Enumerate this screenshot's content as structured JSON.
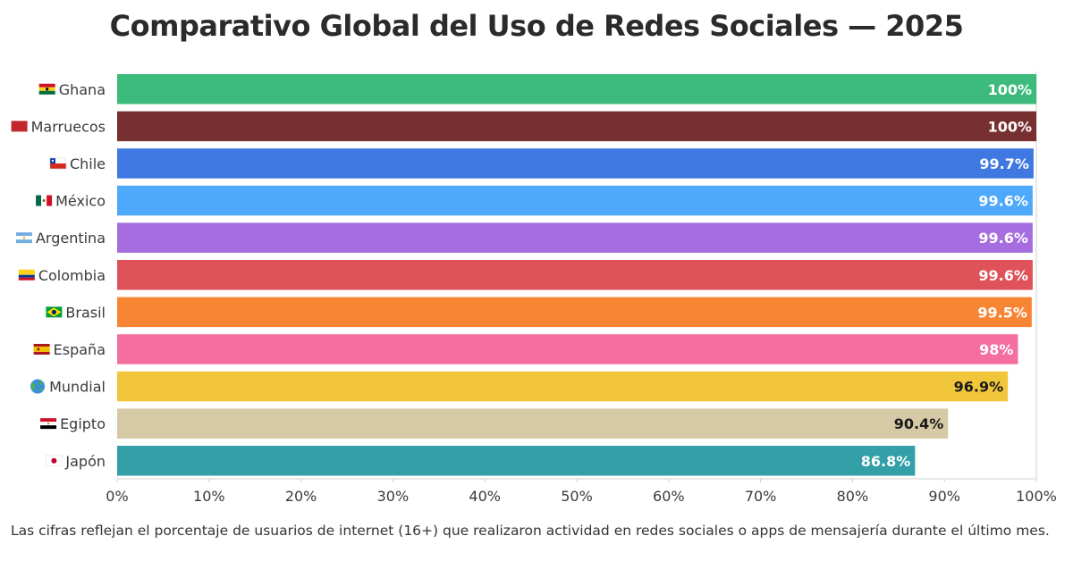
{
  "chart_data": {
    "type": "bar",
    "orientation": "horizontal",
    "title": "Comparativo Global del Uso de Redes Sociales — 2025",
    "categories": [
      "Ghana",
      "Marruecos",
      "Chile",
      "México",
      "Argentina",
      "Colombia",
      "Brasil",
      "España",
      "Mundial",
      "Egipto",
      "Japón"
    ],
    "values": [
      100,
      100,
      99.7,
      99.6,
      99.6,
      99.6,
      99.5,
      98,
      96.9,
      90.4,
      86.8
    ],
    "data_labels": [
      "100%",
      "100%",
      "99.7%",
      "99.6%",
      "99.6%",
      "99.6%",
      "99.5%",
      "98%",
      "96.9%",
      "90.4%",
      "86.8%"
    ],
    "colors": [
      "#3dbb7d",
      "#772f30",
      "#3f78e0",
      "#4ea8fb",
      "#a56ddf",
      "#e0525a",
      "#f88534",
      "#f46ea0",
      "#f2c63b",
      "#d6c9a5",
      "#33a0a8"
    ],
    "label_colors": [
      "#ffffff",
      "#ffffff",
      "#ffffff",
      "#ffffff",
      "#ffffff",
      "#ffffff",
      "#ffffff",
      "#ffffff",
      "#1a1a1a",
      "#1a1a1a",
      "#ffffff"
    ],
    "flag_icons": [
      "ghana-flag-icon",
      "morocco-flag-icon",
      "chile-flag-icon",
      "mexico-flag-icon",
      "argentina-flag-icon",
      "colombia-flag-icon",
      "brazil-flag-icon",
      "spain-flag-icon",
      "globe-icon",
      "egypt-flag-icon",
      "japan-flag-icon"
    ],
    "xlim": [
      0,
      100
    ],
    "xticks": [
      0,
      10,
      20,
      30,
      40,
      50,
      60,
      70,
      80,
      90,
      100
    ],
    "xtick_labels": [
      "0%",
      "10%",
      "20%",
      "30%",
      "40%",
      "50%",
      "60%",
      "70%",
      "80%",
      "90%",
      "100%"
    ],
    "xlabel": "",
    "ylabel": "",
    "grid": false,
    "footnote": "Las cifras reflejan el porcentaje de usuarios de internet (16+) que realizaron actividad en redes sociales o apps de mensajería durante el último mes."
  }
}
